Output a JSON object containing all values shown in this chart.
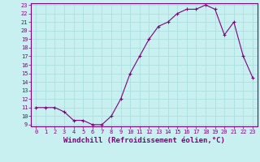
{
  "x": [
    0,
    1,
    2,
    3,
    4,
    5,
    6,
    7,
    8,
    9,
    10,
    11,
    12,
    13,
    14,
    15,
    16,
    17,
    18,
    19,
    20,
    21,
    22,
    23
  ],
  "y": [
    11,
    11,
    11,
    10.5,
    9.5,
    9.5,
    9,
    9,
    10,
    12,
    15,
    17,
    19,
    20.5,
    21,
    22,
    22.5,
    22.5,
    23,
    22.5,
    19.5,
    21,
    17,
    14.5
  ],
  "line_color": "#800080",
  "marker": "+",
  "marker_color": "#800080",
  "bg_color": "#c8f0f0",
  "grid_color": "#a0d8d8",
  "xlabel": "Windchill (Refroidissement éolien,°C)",
  "xlabel_color": "#800080",
  "xlim": [
    0,
    23
  ],
  "ylim": [
    9,
    23
  ],
  "yticks": [
    9,
    10,
    11,
    12,
    13,
    14,
    15,
    16,
    17,
    18,
    19,
    20,
    21,
    22,
    23
  ],
  "xticks": [
    0,
    1,
    2,
    3,
    4,
    5,
    6,
    7,
    8,
    9,
    10,
    11,
    12,
    13,
    14,
    15,
    16,
    17,
    18,
    19,
    20,
    21,
    22,
    23
  ],
  "tick_color": "#800080",
  "tick_label_fontsize": 5,
  "xlabel_fontsize": 6.5,
  "spine_color": "#800080",
  "linewidth": 0.8,
  "markersize": 3
}
